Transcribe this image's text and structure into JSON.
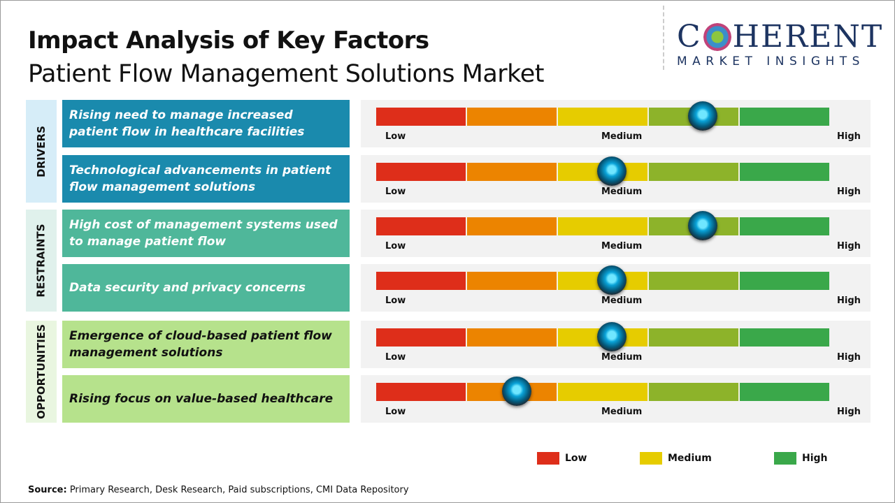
{
  "header": {
    "title": "Impact Analysis of Key Factors",
    "subtitle": "Patient Flow Management Solutions Market"
  },
  "logo": {
    "line1": "COHERENT",
    "line2": "MARKET INSIGHTS"
  },
  "scale_labels": {
    "low": "Low",
    "medium": "Medium",
    "high": "High"
  },
  "segment_colors": [
    "#de2e1a",
    "#ec8400",
    "#e6cc00",
    "#8db32a",
    "#3aa84a"
  ],
  "categories": [
    {
      "label": "DRIVERS",
      "bg": "#d6edf8",
      "factor_bg": "#1a8aad",
      "text_color": "#ffffff"
    },
    {
      "label": "RESTRAINTS",
      "bg": "#e0f1ec",
      "factor_bg": "#4fb79a",
      "text_color": "#ffffff"
    },
    {
      "label": "OPPORTUNITIES",
      "bg": "#e9f6e0",
      "factor_bg": "#b6e28c",
      "text_color": "#111111"
    }
  ],
  "factors": [
    {
      "category": 0,
      "text": "Rising need to manage increased patient flow in healthcare facilities",
      "impact": 0.72
    },
    {
      "category": 0,
      "text": "Technological advancements in patient flow management solutions",
      "impact": 0.52
    },
    {
      "category": 1,
      "text": "High cost of management systems used to manage patient flow",
      "impact": 0.72
    },
    {
      "category": 1,
      "text": "Data security and privacy concerns",
      "impact": 0.52
    },
    {
      "category": 2,
      "text": "Emergence of cloud-based patient flow management solutions",
      "impact": 0.52
    },
    {
      "category": 2,
      "text": "Rising focus on value-based healthcare",
      "impact": 0.31
    }
  ],
  "legend": [
    {
      "label": "Low",
      "color": "#de2e1a"
    },
    {
      "label": "Medium",
      "color": "#e6cc00"
    },
    {
      "label": "High",
      "color": "#3aa84a"
    }
  ],
  "source": {
    "label": "Source:",
    "text": " Primary Research, Desk Research, Paid subscriptions, CMI Data Repository"
  }
}
